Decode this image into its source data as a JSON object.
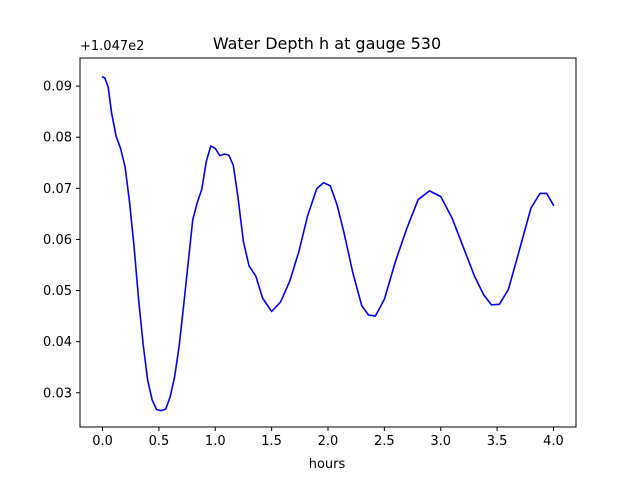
{
  "chart_data": {
    "type": "line",
    "title": "Water Depth h at gauge 530",
    "xlabel": "hours",
    "ylabel": "",
    "y_offset_label": "+1.047e2",
    "xlim": [
      -0.2,
      4.2
    ],
    "ylim": [
      0.0233,
      0.0955
    ],
    "grid": false,
    "legend": "none",
    "xticks": [
      0.0,
      0.5,
      1.0,
      1.5,
      2.0,
      2.5,
      3.0,
      3.5,
      4.0
    ],
    "xtick_labels": [
      "0.0",
      "0.5",
      "1.0",
      "1.5",
      "2.0",
      "2.5",
      "3.0",
      "3.5",
      "4.0"
    ],
    "yticks": [
      0.03,
      0.04,
      0.05,
      0.06,
      0.07,
      0.08,
      0.09
    ],
    "ytick_labels": [
      "0.03",
      "0.04",
      "0.05",
      "0.06",
      "0.07",
      "0.08",
      "0.09"
    ],
    "series": [
      {
        "color": "#0000ff",
        "x": [
          0.0,
          0.02,
          0.05,
          0.08,
          0.12,
          0.16,
          0.2,
          0.24,
          0.28,
          0.32,
          0.36,
          0.4,
          0.44,
          0.48,
          0.52,
          0.56,
          0.6,
          0.64,
          0.68,
          0.72,
          0.76,
          0.8,
          0.84,
          0.88,
          0.92,
          0.96,
          1.0,
          1.04,
          1.08,
          1.12,
          1.16,
          1.2,
          1.25,
          1.3,
          1.36,
          1.42,
          1.5,
          1.58,
          1.66,
          1.74,
          1.82,
          1.9,
          1.96,
          2.02,
          2.08,
          2.14,
          2.22,
          2.3,
          2.36,
          2.42,
          2.5,
          2.6,
          2.7,
          2.8,
          2.9,
          3.0,
          3.1,
          3.2,
          3.3,
          3.38,
          3.45,
          3.52,
          3.6,
          3.7,
          3.8,
          3.88,
          3.94,
          4.0
        ],
        "y": [
          0.0918,
          0.0916,
          0.0898,
          0.0848,
          0.0802,
          0.0778,
          0.0742,
          0.0672,
          0.0585,
          0.0482,
          0.0395,
          0.0325,
          0.0286,
          0.0267,
          0.0265,
          0.0268,
          0.0292,
          0.0332,
          0.0392,
          0.0472,
          0.0555,
          0.0638,
          0.0672,
          0.0698,
          0.0752,
          0.0783,
          0.0778,
          0.0764,
          0.0767,
          0.0765,
          0.0745,
          0.0685,
          0.0595,
          0.0548,
          0.0528,
          0.0485,
          0.0459,
          0.0478,
          0.0518,
          0.0575,
          0.0647,
          0.0699,
          0.0711,
          0.0705,
          0.0668,
          0.0615,
          0.0535,
          0.047,
          0.0452,
          0.045,
          0.0483,
          0.0558,
          0.0622,
          0.0678,
          0.0695,
          0.0684,
          0.0642,
          0.0585,
          0.0528,
          0.0492,
          0.0472,
          0.0473,
          0.0502,
          0.0581,
          0.0661,
          0.069,
          0.069,
          0.0667
        ]
      }
    ]
  }
}
